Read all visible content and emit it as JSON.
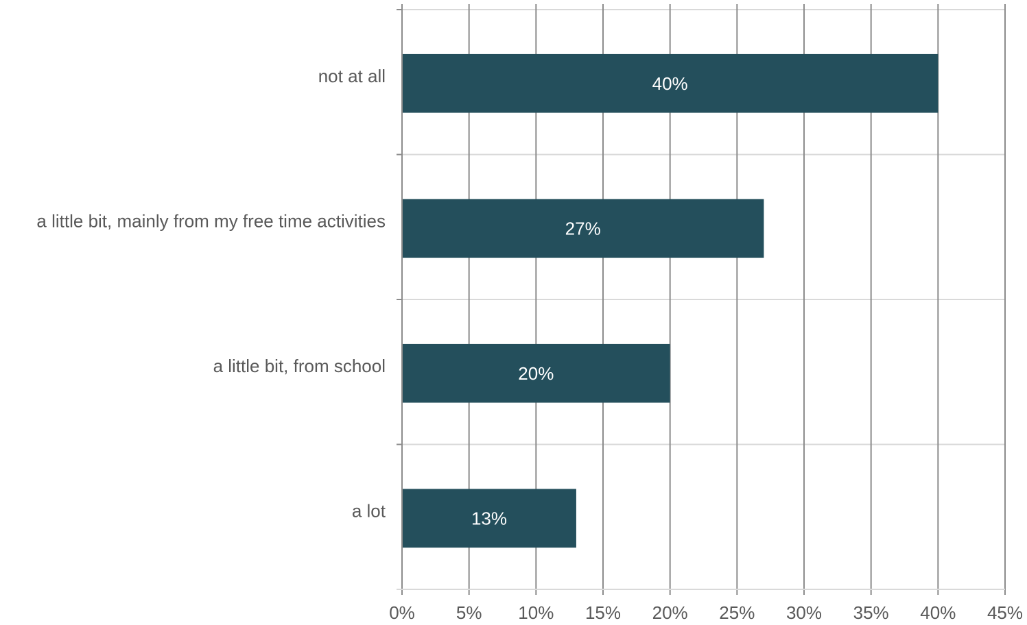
{
  "chart_data": {
    "type": "bar",
    "orientation": "horizontal",
    "title": "",
    "xlabel": "",
    "ylabel": "",
    "categories": [
      "not at all",
      "a little bit, mainly from my free time activities",
      "a little bit, from school",
      "a lot"
    ],
    "values": [
      40,
      27,
      20,
      13
    ],
    "data_labels": [
      "40%",
      "27%",
      "20%",
      "13%"
    ],
    "xlim": [
      0,
      45
    ],
    "x_ticks": [
      0,
      5,
      10,
      15,
      20,
      25,
      30,
      35,
      40,
      45
    ],
    "x_tick_labels": [
      "0%",
      "5%",
      "10%",
      "15%",
      "20%",
      "25%",
      "30%",
      "35%",
      "40%",
      "45%"
    ],
    "grid": true,
    "legend": "none",
    "bar_color": "#244f5c"
  }
}
